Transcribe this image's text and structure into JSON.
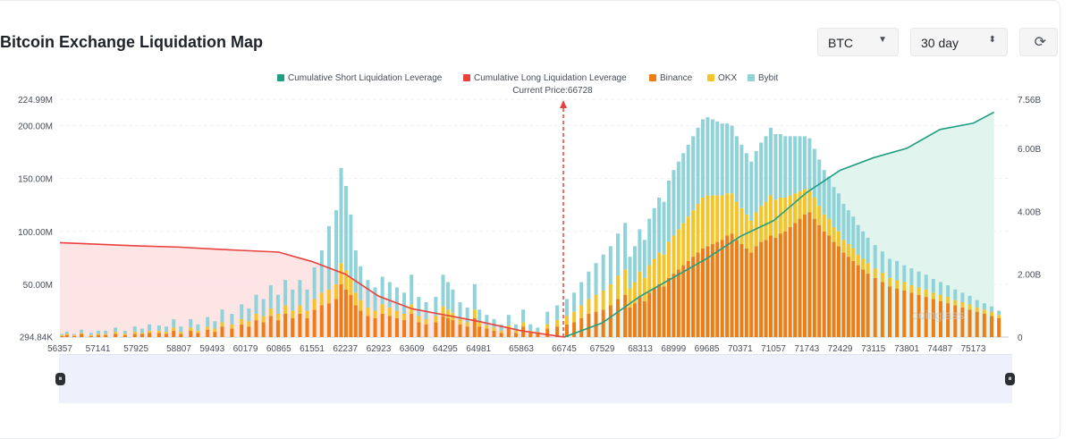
{
  "header": {
    "title": "Bitcoin Exchange Liquidation Map",
    "coin_select": "BTC",
    "range_select": "30 day"
  },
  "watermark": "coinglass",
  "chart_data": {
    "type": "bar",
    "current_price_label": "Current Price:66728",
    "current_price": 66728,
    "legend_position": "top-center",
    "legend": [
      {
        "name": "Cumulative Short Liquidation Leverage",
        "color": "#1f9e82"
      },
      {
        "name": "Cumulative Long Liquidation Leverage",
        "color": "#e8413e"
      },
      {
        "name": "Binance",
        "color": "#ee7d15"
      },
      {
        "name": "OKX",
        "color": "#f4c52a"
      },
      {
        "name": "Bybit",
        "color": "#8fd3d8"
      }
    ],
    "left_axis": {
      "min": 0,
      "max": 224990000,
      "ticks": [
        "294.84K",
        "50.00M",
        "100.00M",
        "150.00M",
        "200.00M",
        "224.99M"
      ],
      "tick_values": [
        294840,
        50000000,
        100000000,
        150000000,
        200000000,
        224990000
      ]
    },
    "right_axis": {
      "min": 0,
      "max": 7560000000,
      "ticks": [
        "0",
        "2.00B",
        "4.00B",
        "6.00B",
        "7.56B"
      ],
      "tick_values": [
        0,
        2000000000,
        4000000000,
        6000000000,
        7560000000
      ]
    },
    "x_range": [
      56357,
      75900
    ],
    "x_ticks": [
      56357,
      57141,
      57925,
      58807,
      59493,
      60179,
      60865,
      61551,
      62237,
      62923,
      63609,
      64295,
      64981,
      65863,
      66745,
      67529,
      68313,
      68999,
      69685,
      70371,
      71057,
      71743,
      72429,
      73115,
      73801,
      74487,
      75173
    ],
    "grid": true,
    "bars": {
      "series": [
        "Binance",
        "OKX",
        "Bybit"
      ],
      "x": [
        56400,
        56500,
        56650,
        56800,
        57000,
        57150,
        57300,
        57500,
        57700,
        57900,
        58050,
        58200,
        58400,
        58550,
        58700,
        58850,
        59050,
        59200,
        59400,
        59550,
        59700,
        59900,
        60100,
        60250,
        60400,
        60550,
        60700,
        60850,
        61000,
        61150,
        61300,
        61450,
        61600,
        61750,
        61900,
        62050,
        62150,
        62250,
        62350,
        62450,
        62550,
        62700,
        62850,
        63000,
        63150,
        63300,
        63450,
        63600,
        63750,
        63900,
        64100,
        64250,
        64350,
        64450,
        64600,
        64750,
        64900,
        65000,
        65150,
        65300,
        65450,
        65600,
        65750,
        65900,
        66050,
        66200,
        66400,
        66600,
        66800,
        66950,
        67100,
        67250,
        67400,
        67550,
        67700,
        67850,
        68000,
        68100,
        68200,
        68300,
        68400,
        68500,
        68600,
        68700,
        68800,
        68900,
        69000,
        69100,
        69200,
        69300,
        69400,
        69500,
        69600,
        69700,
        69800,
        69900,
        70000,
        70100,
        70200,
        70300,
        70400,
        70500,
        70600,
        70700,
        70800,
        70900,
        71000,
        71100,
        71200,
        71300,
        71400,
        71500,
        71600,
        71700,
        71800,
        71900,
        72000,
        72100,
        72200,
        72300,
        72400,
        72500,
        72600,
        72700,
        72800,
        72900,
        73000,
        73150,
        73300,
        73450,
        73600,
        73750,
        73900,
        74050,
        74200,
        74350,
        74500,
        74650,
        74800,
        74950,
        75100,
        75250,
        75400,
        75550,
        75700
      ],
      "Binance": [
        1,
        2,
        1,
        3,
        1,
        2,
        2,
        3,
        2,
        3,
        3,
        4,
        4,
        3,
        6,
        3,
        6,
        4,
        7,
        5,
        10,
        8,
        12,
        10,
        16,
        14,
        20,
        16,
        22,
        18,
        22,
        18,
        26,
        30,
        32,
        36,
        50,
        45,
        40,
        30,
        25,
        20,
        18,
        22,
        20,
        18,
        16,
        22,
        14,
        12,
        14,
        20,
        18,
        16,
        12,
        10,
        18,
        10,
        8,
        6,
        4,
        8,
        4,
        10,
        4,
        3,
        8,
        10,
        12,
        14,
        18,
        22,
        24,
        26,
        30,
        36,
        40,
        28,
        32,
        38,
        34,
        42,
        46,
        50,
        48,
        56,
        60,
        64,
        68,
        72,
        76,
        80,
        84,
        86,
        88,
        90,
        92,
        96,
        98,
        92,
        88,
        84,
        80,
        86,
        90,
        92,
        96,
        94,
        98,
        100,
        104,
        108,
        112,
        116,
        118,
        112,
        106,
        100,
        96,
        90,
        86,
        80,
        76,
        72,
        68,
        64,
        60,
        56,
        52,
        48,
        46,
        44,
        42,
        40,
        38,
        36,
        34,
        32,
        30,
        28,
        26,
        24,
        22,
        20,
        18
      ],
      "OKX": [
        1,
        1,
        1,
        1,
        1,
        1,
        1,
        2,
        1,
        2,
        1,
        2,
        2,
        2,
        3,
        2,
        3,
        2,
        3,
        3,
        4,
        4,
        5,
        5,
        6,
        6,
        7,
        6,
        8,
        7,
        8,
        7,
        10,
        12,
        13,
        14,
        20,
        18,
        16,
        12,
        10,
        8,
        7,
        9,
        8,
        7,
        6,
        9,
        6,
        5,
        6,
        9,
        8,
        7,
        5,
        4,
        8,
        4,
        3,
        3,
        2,
        3,
        2,
        4,
        2,
        2,
        4,
        6,
        8,
        10,
        12,
        14,
        16,
        18,
        20,
        22,
        24,
        18,
        20,
        24,
        22,
        26,
        28,
        30,
        30,
        34,
        36,
        38,
        40,
        42,
        44,
        46,
        48,
        48,
        46,
        44,
        42,
        40,
        38,
        36,
        34,
        32,
        30,
        32,
        34,
        36,
        38,
        36,
        34,
        32,
        30,
        28,
        26,
        24,
        22,
        20,
        18,
        16,
        16,
        14,
        14,
        12,
        12,
        12,
        10,
        10,
        10,
        9,
        9,
        8,
        8,
        8,
        7,
        7,
        7,
        6,
        6,
        6,
        5,
        5,
        5,
        4,
        4,
        4,
        3
      ],
      "Bybit": [
        1,
        2,
        1,
        3,
        2,
        3,
        3,
        4,
        3,
        5,
        4,
        6,
        5,
        5,
        8,
        5,
        8,
        6,
        9,
        7,
        12,
        10,
        14,
        12,
        18,
        16,
        22,
        18,
        24,
        20,
        24,
        20,
        30,
        40,
        60,
        70,
        90,
        80,
        60,
        40,
        32,
        26,
        22,
        26,
        24,
        22,
        20,
        28,
        18,
        16,
        18,
        30,
        26,
        22,
        16,
        14,
        24,
        12,
        10,
        8,
        6,
        10,
        6,
        12,
        6,
        4,
        12,
        14,
        16,
        18,
        22,
        26,
        30,
        34,
        36,
        40,
        44,
        30,
        34,
        40,
        36,
        44,
        48,
        52,
        50,
        58,
        62,
        64,
        66,
        68,
        70,
        72,
        74,
        74,
        72,
        70,
        68,
        66,
        64,
        62,
        60,
        58,
        56,
        58,
        60,
        62,
        64,
        62,
        60,
        58,
        56,
        54,
        52,
        50,
        48,
        46,
        44,
        42,
        40,
        38,
        36,
        34,
        32,
        30,
        28,
        26,
        24,
        22,
        20,
        18,
        18,
        16,
        16,
        15,
        14,
        13,
        12,
        11,
        10,
        9,
        8,
        7,
        6,
        5,
        4
      ]
    },
    "cumulative_long": {
      "x": [
        56357,
        57141,
        57925,
        58807,
        59493,
        60179,
        60865,
        61551,
        62237,
        62923,
        63609,
        64295,
        64981,
        65863,
        66745
      ],
      "values": [
        3000000000,
        2950000000,
        2900000000,
        2860000000,
        2800000000,
        2750000000,
        2700000000,
        2400000000,
        2000000000,
        1300000000,
        900000000,
        700000000,
        500000000,
        200000000,
        0
      ]
    },
    "cumulative_short": {
      "x": [
        66745,
        67529,
        68313,
        68999,
        69685,
        70371,
        71057,
        71743,
        72429,
        73115,
        73801,
        74487,
        75173,
        75600
      ],
      "values": [
        0,
        450000000,
        1300000000,
        1900000000,
        2500000000,
        3200000000,
        3700000000,
        4600000000,
        5300000000,
        5700000000,
        6000000000,
        6600000000,
        6800000000,
        7150000000
      ]
    }
  }
}
